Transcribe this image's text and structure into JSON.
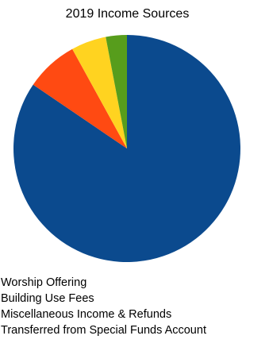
{
  "chart_data": {
    "type": "pie",
    "title": "2019 Income Sources",
    "slices": [
      {
        "label": "Worship Offering",
        "value": 84.5,
        "color": "#0b4a8e"
      },
      {
        "label": "Building Use Fees",
        "value": 7.5,
        "color": "#ff4a12"
      },
      {
        "label": "Miscellaneous Income & Refunds",
        "value": 5.0,
        "color": "#ffd320"
      },
      {
        "label": "Transferred from Special Funds Account",
        "value": 3.0,
        "color": "#579d1c"
      }
    ],
    "start_angle_deg": 0,
    "direction": "clockwise",
    "legend_position": "bottom"
  }
}
